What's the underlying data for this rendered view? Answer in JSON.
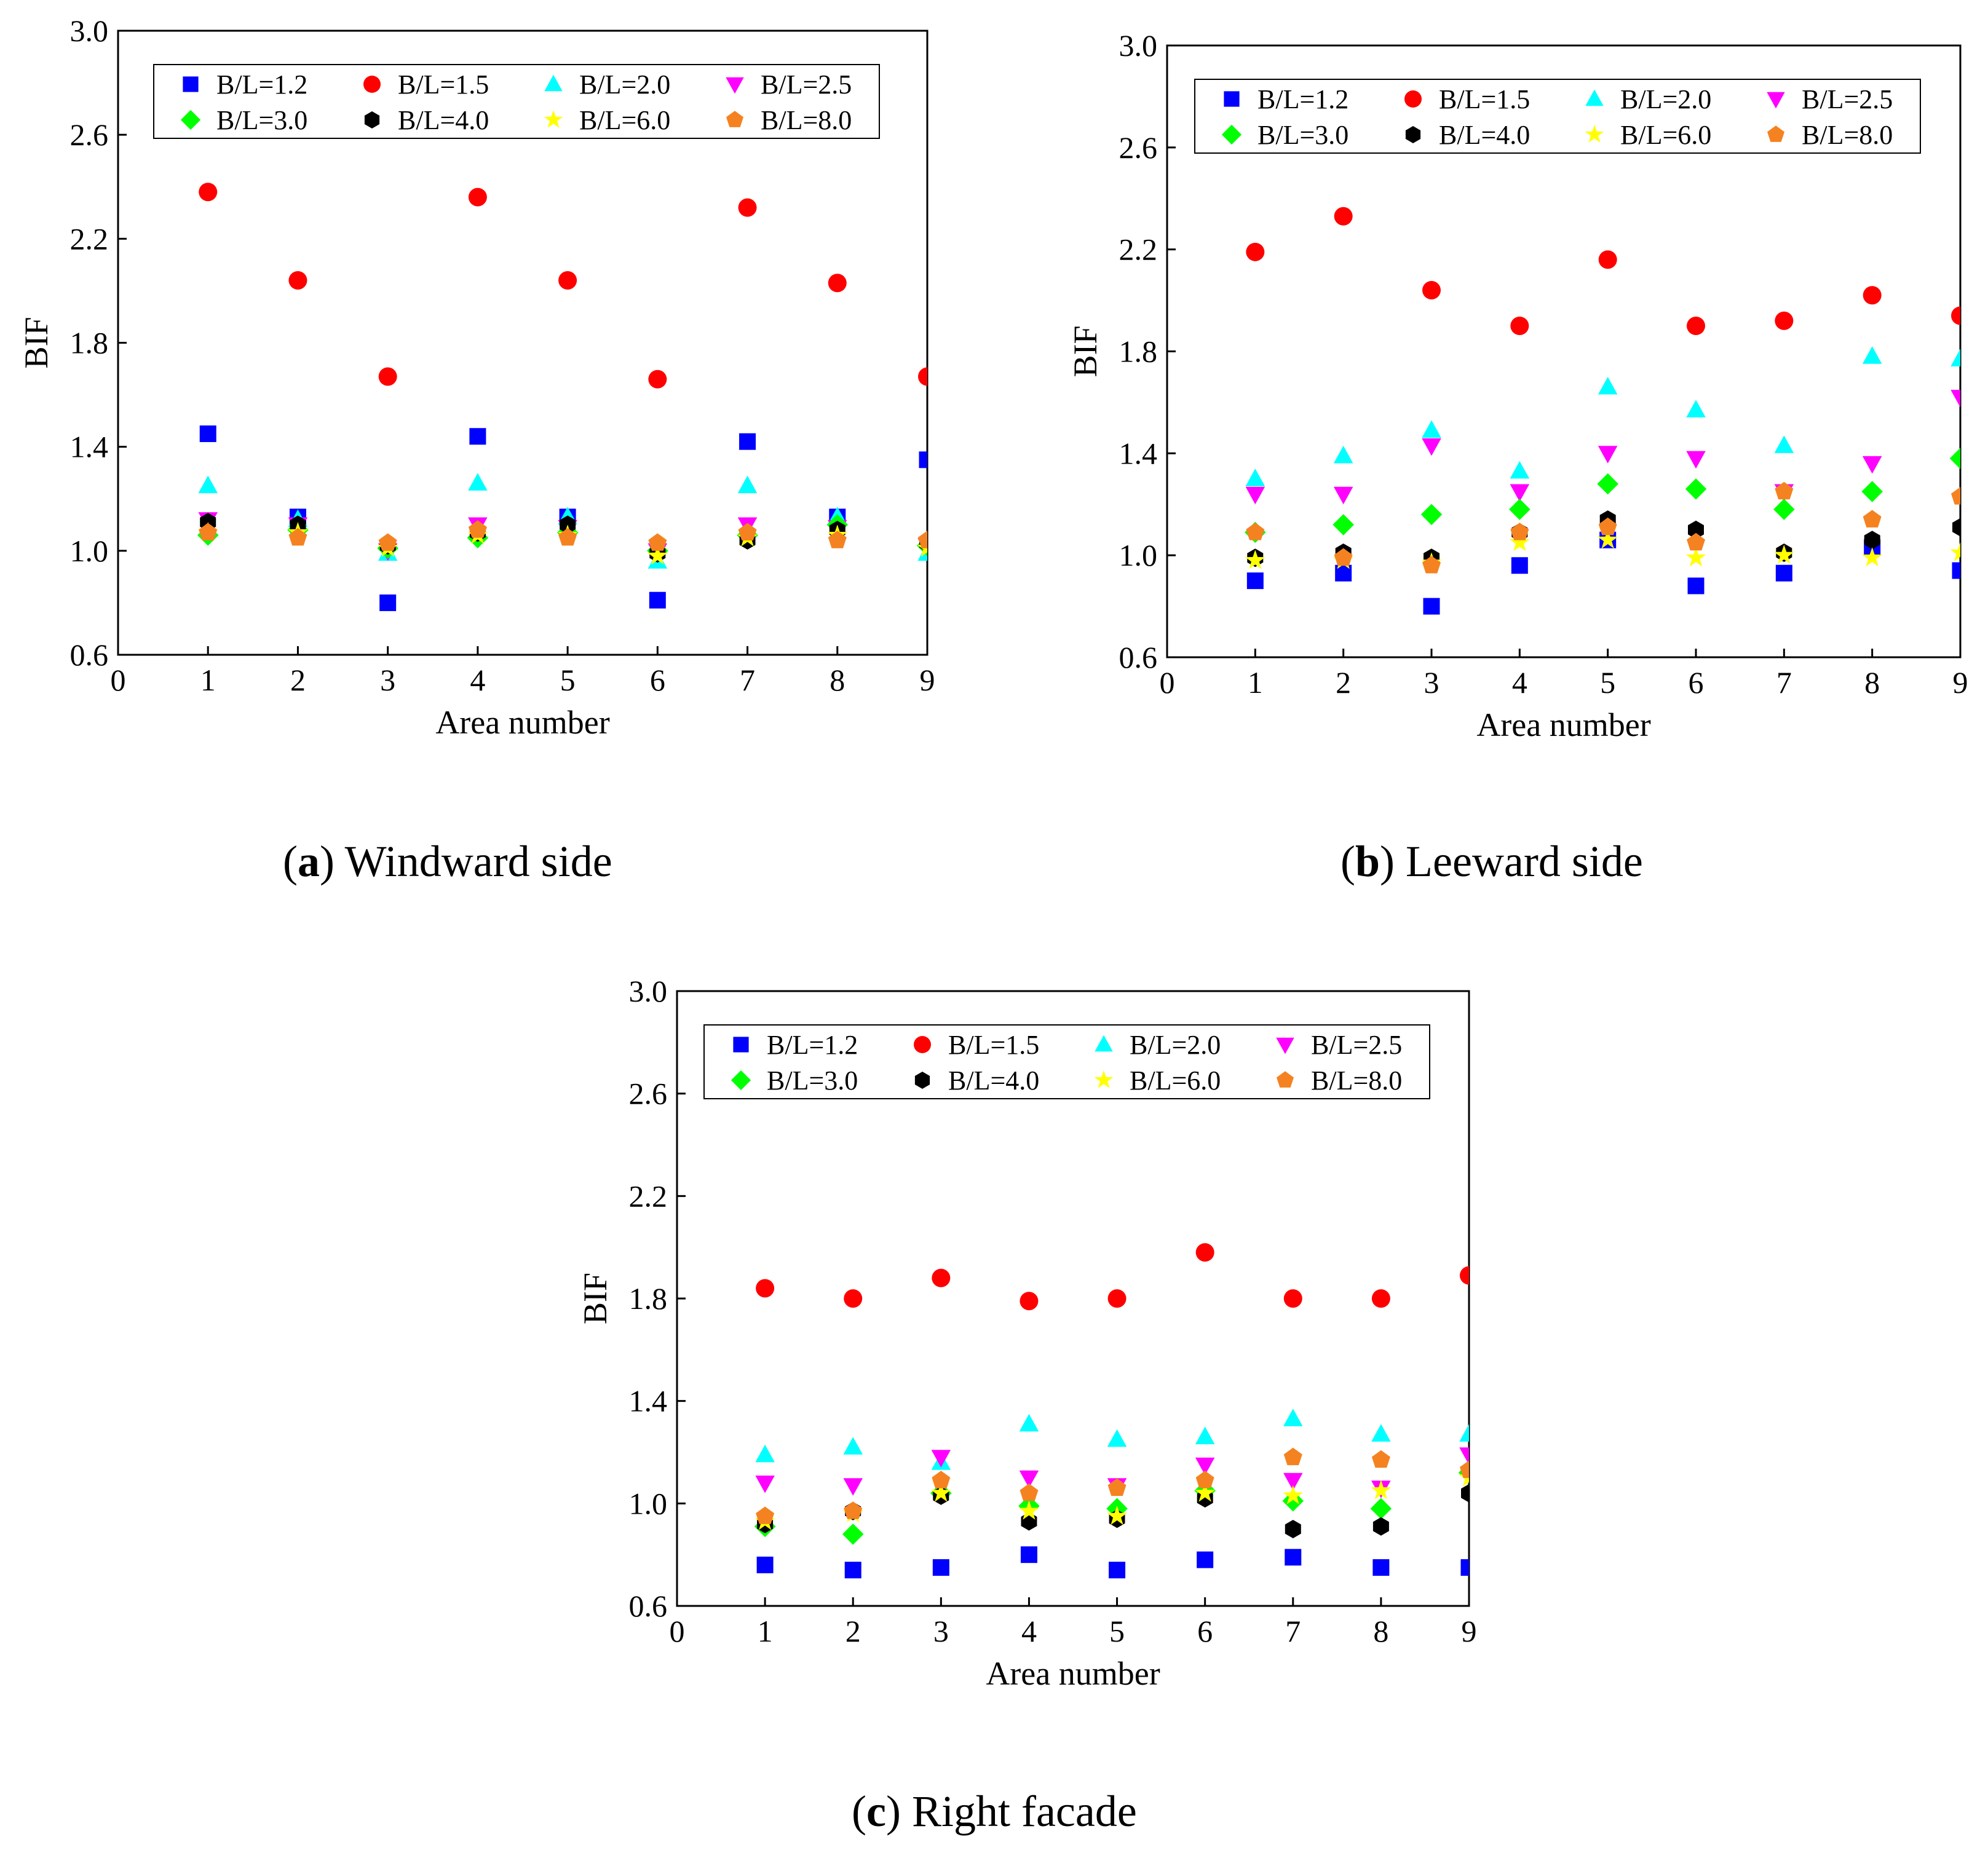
{
  "figure": {
    "panels": [
      {
        "letter": "a",
        "caption": "Windward side"
      },
      {
        "letter": "b",
        "caption": "Leeward side"
      },
      {
        "letter": "c",
        "caption": "Right facade"
      }
    ]
  },
  "chart_data": [
    {
      "type": "scatter",
      "title": "(a) Windward side",
      "xlabel": "Area number",
      "ylabel": "BIF",
      "xlim": [
        0,
        9
      ],
      "ylim": [
        0.6,
        3.0
      ],
      "xticks": [
        0,
        1,
        2,
        3,
        4,
        5,
        6,
        7,
        8,
        9
      ],
      "yticks": [
        0.6,
        1.0,
        1.4,
        1.8,
        2.2,
        2.6,
        3.0
      ],
      "x": [
        1,
        2,
        3,
        4,
        5,
        6,
        7,
        8,
        9
      ],
      "legend_position": "top",
      "series": [
        {
          "name": "B/L=1.2",
          "marker": "square",
          "color": "#0000ff",
          "values": [
            1.45,
            1.13,
            0.8,
            1.44,
            1.13,
            0.81,
            1.42,
            1.13,
            1.35
          ]
        },
        {
          "name": "B/L=1.5",
          "marker": "circle",
          "color": "#ff0000",
          "values": [
            2.38,
            2.04,
            1.67,
            2.36,
            2.04,
            1.66,
            2.32,
            2.03,
            1.67
          ]
        },
        {
          "name": "B/L=2.0",
          "marker": "triangle-up",
          "color": "#00ffff",
          "values": [
            1.25,
            1.12,
            0.99,
            1.26,
            1.13,
            0.96,
            1.25,
            1.13,
            0.99
          ]
        },
        {
          "name": "B/L=2.5",
          "marker": "triangle-down",
          "color": "#ff00ff",
          "values": [
            1.12,
            1.1,
            1.0,
            1.1,
            1.09,
            1.0,
            1.1,
            1.09,
            1.02
          ]
        },
        {
          "name": "B/L=3.0",
          "marker": "diamond",
          "color": "#00ff00",
          "values": [
            1.06,
            1.08,
            1.01,
            1.05,
            1.07,
            1.0,
            1.06,
            1.1,
            1.02
          ]
        },
        {
          "name": "B/L=4.0",
          "marker": "hexagon",
          "color": "#000000",
          "values": [
            1.11,
            1.1,
            1.02,
            1.07,
            1.1,
            0.99,
            1.04,
            1.08,
            1.03
          ]
        },
        {
          "name": "B/L=6.0",
          "marker": "star",
          "color": "#ffff00",
          "values": [
            1.07,
            1.07,
            1.01,
            1.06,
            1.06,
            0.98,
            1.05,
            1.06,
            1.01
          ]
        },
        {
          "name": "B/L=8.0",
          "marker": "pentagon",
          "color": "#f58220",
          "values": [
            1.07,
            1.05,
            1.03,
            1.08,
            1.05,
            1.03,
            1.07,
            1.04,
            1.04
          ]
        }
      ]
    },
    {
      "type": "scatter",
      "title": "(b) Leeward side",
      "xlabel": "Area number",
      "ylabel": "BIF",
      "xlim": [
        0,
        9
      ],
      "ylim": [
        0.6,
        3.0
      ],
      "xticks": [
        0,
        1,
        2,
        3,
        4,
        5,
        6,
        7,
        8,
        9
      ],
      "yticks": [
        0.6,
        1.0,
        1.4,
        1.8,
        2.2,
        2.6,
        3.0
      ],
      "x": [
        1,
        2,
        3,
        4,
        5,
        6,
        7,
        8,
        9
      ],
      "legend_position": "top",
      "series": [
        {
          "name": "B/L=1.2",
          "marker": "square",
          "color": "#0000ff",
          "values": [
            0.9,
            0.93,
            0.8,
            0.96,
            1.06,
            0.88,
            0.93,
            1.03,
            0.94
          ]
        },
        {
          "name": "B/L=1.5",
          "marker": "circle",
          "color": "#ff0000",
          "values": [
            2.19,
            2.33,
            2.04,
            1.9,
            2.16,
            1.9,
            1.92,
            2.02,
            1.94
          ]
        },
        {
          "name": "B/L=2.0",
          "marker": "triangle-up",
          "color": "#00ffff",
          "values": [
            1.3,
            1.39,
            1.49,
            1.33,
            1.66,
            1.57,
            1.43,
            1.78,
            1.77
          ]
        },
        {
          "name": "B/L=2.5",
          "marker": "triangle-down",
          "color": "#ff00ff",
          "values": [
            1.24,
            1.24,
            1.43,
            1.25,
            1.4,
            1.38,
            1.25,
            1.36,
            1.62
          ]
        },
        {
          "name": "B/L=3.0",
          "marker": "diamond",
          "color": "#00ff00",
          "values": [
            1.09,
            1.12,
            1.16,
            1.18,
            1.28,
            1.26,
            1.18,
            1.25,
            1.38
          ]
        },
        {
          "name": "B/L=4.0",
          "marker": "hexagon",
          "color": "#000000",
          "values": [
            0.99,
            1.01,
            0.99,
            1.09,
            1.14,
            1.1,
            1.01,
            1.06,
            1.11
          ]
        },
        {
          "name": "B/L=6.0",
          "marker": "star",
          "color": "#ffff00",
          "values": [
            0.98,
            0.98,
            0.97,
            1.05,
            1.06,
            0.99,
            1.0,
            0.99,
            1.01
          ]
        },
        {
          "name": "B/L=8.0",
          "marker": "pentagon",
          "color": "#f58220",
          "values": [
            1.09,
            0.99,
            0.96,
            1.09,
            1.11,
            1.05,
            1.25,
            1.14,
            1.23
          ]
        }
      ]
    },
    {
      "type": "scatter",
      "title": "(c) Right facade",
      "xlabel": "Area number",
      "ylabel": "BIF",
      "xlim": [
        0,
        9
      ],
      "ylim": [
        0.6,
        3.0
      ],
      "xticks": [
        0,
        1,
        2,
        3,
        4,
        5,
        6,
        7,
        8,
        9
      ],
      "yticks": [
        0.6,
        1.0,
        1.4,
        1.8,
        2.2,
        2.6,
        3.0
      ],
      "x": [
        1,
        2,
        3,
        4,
        5,
        6,
        7,
        8,
        9
      ],
      "legend_position": "top",
      "series": [
        {
          "name": "B/L=1.2",
          "marker": "square",
          "color": "#0000ff",
          "values": [
            0.76,
            0.74,
            0.75,
            0.8,
            0.74,
            0.78,
            0.79,
            0.75,
            0.75
          ]
        },
        {
          "name": "B/L=1.5",
          "marker": "circle",
          "color": "#ff0000",
          "values": [
            1.84,
            1.8,
            1.88,
            1.79,
            1.8,
            1.98,
            1.8,
            1.8,
            1.89
          ]
        },
        {
          "name": "B/L=2.0",
          "marker": "triangle-up",
          "color": "#00ffff",
          "values": [
            1.19,
            1.22,
            1.16,
            1.31,
            1.25,
            1.26,
            1.33,
            1.27,
            1.27
          ]
        },
        {
          "name": "B/L=2.5",
          "marker": "triangle-down",
          "color": "#ff00ff",
          "values": [
            1.08,
            1.07,
            1.18,
            1.1,
            1.07,
            1.15,
            1.09,
            1.06,
            1.19
          ]
        },
        {
          "name": "B/L=3.0",
          "marker": "diamond",
          "color": "#00ff00",
          "values": [
            0.91,
            0.88,
            1.04,
            0.99,
            0.98,
            1.05,
            1.01,
            0.98,
            1.12
          ]
        },
        {
          "name": "B/L=4.0",
          "marker": "hexagon",
          "color": "#000000",
          "values": [
            0.92,
            0.97,
            1.03,
            0.93,
            0.94,
            1.02,
            0.9,
            0.91,
            1.04
          ]
        },
        {
          "name": "B/L=6.0",
          "marker": "star",
          "color": "#ffff00",
          "values": [
            0.93,
            0.96,
            1.04,
            0.97,
            0.95,
            1.04,
            1.03,
            1.05,
            1.1
          ]
        },
        {
          "name": "B/L=8.0",
          "marker": "pentagon",
          "color": "#f58220",
          "values": [
            0.95,
            0.97,
            1.09,
            1.04,
            1.06,
            1.09,
            1.18,
            1.17,
            1.13
          ]
        }
      ]
    }
  ]
}
